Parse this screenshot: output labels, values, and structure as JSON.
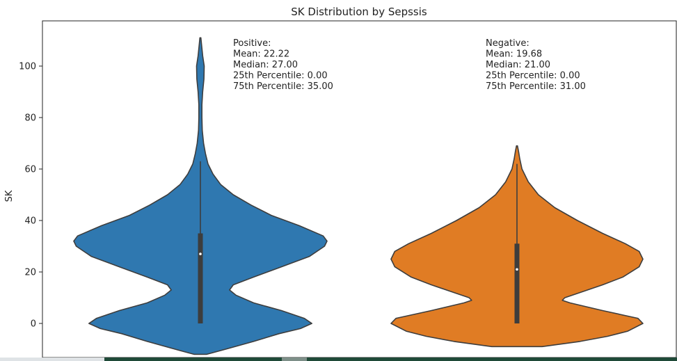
{
  "chart_data": {
    "type": "violin",
    "title": "SK Distribution by Sepssis",
    "xlabel": "",
    "ylabel": "SK",
    "yticks": [
      0,
      20,
      40,
      60,
      80,
      100
    ],
    "ylim": [
      -13,
      117
    ],
    "categories": [
      "Positive",
      "Negative"
    ],
    "series": [
      {
        "category": "Positive",
        "color": "#2f78b0",
        "min": -12,
        "max": 111,
        "annotation_lines": [
          "Positive:",
          "Mean: 22.22",
          "Median: 27.00",
          "25th Percentile: 0.00",
          "75th Percentile: 35.00"
        ],
        "mean": 22.22,
        "median": 27.0,
        "q1": 0.0,
        "q3": 35.0,
        "whisker_low": 0,
        "whisker_high": 63,
        "density": [
          [
            -12,
            0.05
          ],
          [
            -10,
            0.2
          ],
          [
            -7,
            0.42
          ],
          [
            -4,
            0.62
          ],
          [
            -2,
            0.79
          ],
          [
            0,
            0.88
          ],
          [
            2,
            0.82
          ],
          [
            5,
            0.64
          ],
          [
            8,
            0.42
          ],
          [
            11,
            0.28
          ],
          [
            13,
            0.23
          ],
          [
            15,
            0.26
          ],
          [
            18,
            0.42
          ],
          [
            22,
            0.64
          ],
          [
            26,
            0.86
          ],
          [
            30,
            0.98
          ],
          [
            32,
            1.0
          ],
          [
            34,
            0.97
          ],
          [
            38,
            0.78
          ],
          [
            42,
            0.56
          ],
          [
            46,
            0.4
          ],
          [
            50,
            0.26
          ],
          [
            54,
            0.16
          ],
          [
            58,
            0.1
          ],
          [
            62,
            0.06
          ],
          [
            66,
            0.04
          ],
          [
            70,
            0.025
          ],
          [
            75,
            0.015
          ],
          [
            80,
            0.012
          ],
          [
            85,
            0.012
          ],
          [
            90,
            0.018
          ],
          [
            95,
            0.028
          ],
          [
            100,
            0.03
          ],
          [
            104,
            0.018
          ],
          [
            108,
            0.01
          ],
          [
            111,
            0.004
          ]
        ]
      },
      {
        "category": "Negative",
        "color": "#e07c24",
        "min": -9,
        "max": 69,
        "annotation_lines": [
          "Negative:",
          "Mean: 19.68",
          "Median: 21.00",
          "25th Percentile: 0.00",
          "75th Percentile: 31.00"
        ],
        "mean": 19.68,
        "median": 21.0,
        "q1": 0.0,
        "q3": 31.0,
        "whisker_low": 0,
        "whisker_high": 62,
        "density": [
          [
            -9,
            0.2
          ],
          [
            -7,
            0.5
          ],
          [
            -5,
            0.72
          ],
          [
            -3,
            0.88
          ],
          [
            0,
            1.0
          ],
          [
            2,
            0.96
          ],
          [
            5,
            0.68
          ],
          [
            8,
            0.42
          ],
          [
            9,
            0.36
          ],
          [
            10,
            0.38
          ],
          [
            12,
            0.5
          ],
          [
            15,
            0.68
          ],
          [
            18,
            0.84
          ],
          [
            22,
            0.97
          ],
          [
            25,
            1.0
          ],
          [
            28,
            0.97
          ],
          [
            31,
            0.86
          ],
          [
            35,
            0.68
          ],
          [
            40,
            0.48
          ],
          [
            45,
            0.3
          ],
          [
            50,
            0.17
          ],
          [
            55,
            0.09
          ],
          [
            60,
            0.04
          ],
          [
            64,
            0.022
          ],
          [
            67,
            0.012
          ],
          [
            69,
            0.004
          ]
        ]
      }
    ]
  }
}
